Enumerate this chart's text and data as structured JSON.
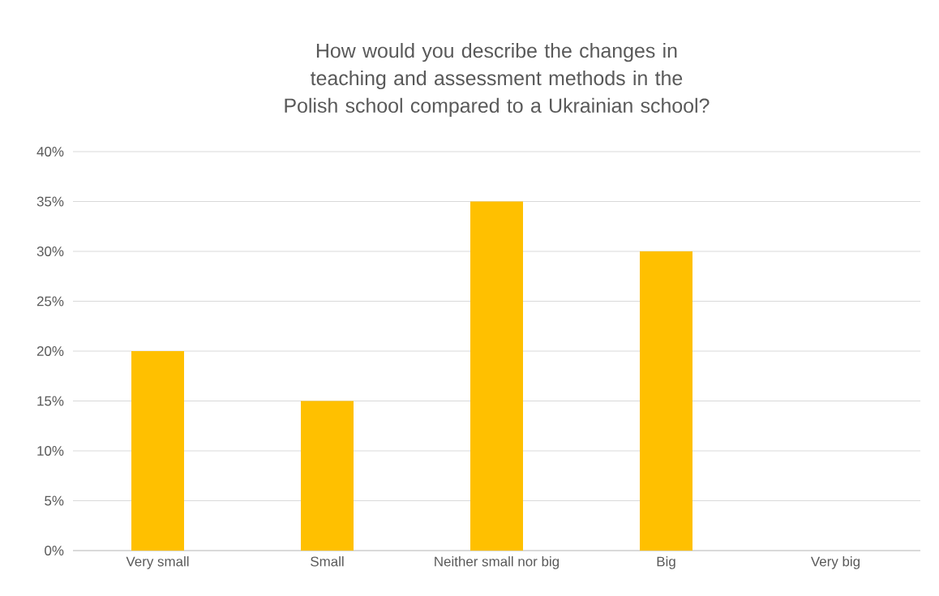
{
  "chart_data": {
    "type": "bar",
    "title": "How would you describe the changes in teaching and assessment methods in the Polish school compared to a Ukrainian school?",
    "categories": [
      "Very small",
      "Small",
      "Neither small nor big",
      "Big",
      "Very big"
    ],
    "values": [
      20,
      15,
      35,
      30,
      0
    ],
    "color": "#ffc000",
    "ylim": [
      0,
      40
    ],
    "yticks": [
      {
        "value": 0,
        "label": "0%"
      },
      {
        "value": 5,
        "label": "5%"
      },
      {
        "value": 10,
        "label": "10%"
      },
      {
        "value": 15,
        "label": "15%"
      },
      {
        "value": 20,
        "label": "20%"
      },
      {
        "value": 25,
        "label": "25%"
      },
      {
        "value": 30,
        "label": "30%"
      },
      {
        "value": 35,
        "label": "35%"
      },
      {
        "value": 40,
        "label": "40%"
      }
    ],
    "grid": "y"
  }
}
